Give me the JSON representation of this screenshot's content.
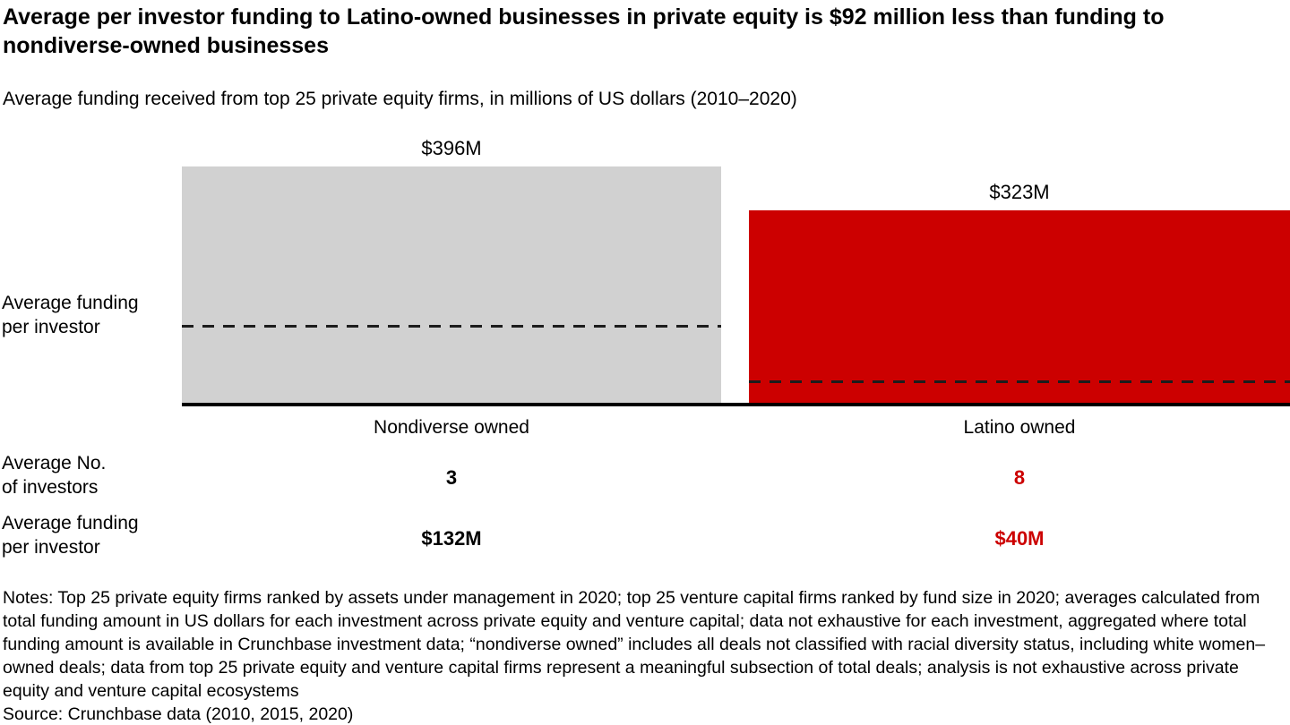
{
  "header": {
    "title": "Average per investor funding to Latino-owned businesses in private equity is $92 million less than funding to nondiverse-owned businesses",
    "subtitle": "Average funding received from top 25 private equity firms, in millions of US dollars (2010–2020)"
  },
  "chart_data": {
    "type": "bar",
    "title": "Average per investor funding to Latino-owned businesses in private equity is $92 million less than funding to nondiverse-owned businesses",
    "subtitle": "Average funding received from top 25 private equity firms, in millions of US dollars (2010–2020)",
    "categories": [
      "Nondiverse owned",
      "Latino owned"
    ],
    "series": [
      {
        "name": "Average funding received ($M)",
        "values": [
          396,
          323
        ]
      }
    ],
    "bar_value_labels": [
      "$396M",
      "$323M"
    ],
    "bar_colors": [
      "#d1d1d1",
      "#cc0000"
    ],
    "dashed_line_values": [
      132,
      40
    ],
    "dashed_line_meaning": "Average funding per investor",
    "ylabel": "Average funding per investor",
    "ylabel_lines": [
      "Average funding",
      "per investor"
    ],
    "xlabel": "",
    "ylim": [
      0,
      400
    ],
    "grid": false,
    "legend": "none",
    "table_rows": [
      {
        "label": "Average No. of investors",
        "label_lines": [
          "Average No.",
          "of investors"
        ],
        "values": [
          "3",
          "8"
        ],
        "value_colors": [
          "#000000",
          "#cc0000"
        ]
      },
      {
        "label": "Average funding per investor",
        "label_lines": [
          "Average funding",
          "per investor"
        ],
        "values": [
          "$132M",
          "$40M"
        ],
        "value_colors": [
          "#000000",
          "#cc0000"
        ]
      }
    ]
  },
  "colors": {
    "nondiverse_bar": "#d1d1d1",
    "latino_bar": "#cc0000",
    "accent_red": "#cc0000",
    "axis_black": "#000000"
  },
  "footer": {
    "notes": "Notes: Top 25 private equity firms ranked by assets under management in 2020; top 25 venture capital firms ranked by fund size in 2020; averages calculated from total funding amount in US dollars for each investment across private equity and venture capital; data not exhaustive for each investment, aggregated where total funding amount is available in Crunchbase investment data; “nondiverse owned” includes all deals not classified with racial diversity status, including white women–owned deals; data from top 25 private equity and venture capital firms represent a meaningful subsection of total deals; analysis is not exhaustive across private equity and venture capital ecosystems",
    "source": "Source: Crunchbase data (2010, 2015, 2020)"
  }
}
